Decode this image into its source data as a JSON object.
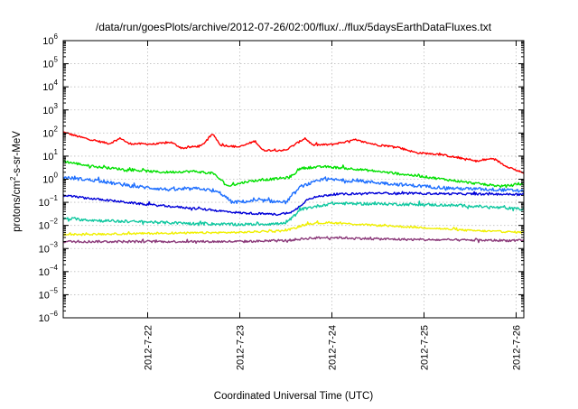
{
  "chart_data": {
    "type": "line",
    "title": "/data/run/goesPlots/archive/2012-07-26/02:00/flux/../flux/5daysEarthDataFluxes.txt",
    "xlabel": "Coordinated Universal Time (UTC)",
    "ylabel": "protons/cm²-s-sr-MeV",
    "y_scale": "log",
    "ylim": [
      1e-06,
      1000000.0
    ],
    "xlim": [
      "2012-07-21 02:00",
      "2012-07-26 02:00"
    ],
    "x_ticks": [
      "2012-7-22",
      "2012-7-23",
      "2012-7-24",
      "2012-7-25",
      "2012-7-26"
    ],
    "y_ticks": [
      "10^-6",
      "10^-5",
      "10^-4",
      "10^-3",
      "10^-2",
      "10^-1",
      "10^0",
      "10^1",
      "10^2",
      "10^3",
      "10^4",
      "10^5",
      "10^6"
    ],
    "grid": true,
    "series": [
      {
        "color": "#ff0000",
        "noise": 0.04,
        "points": [
          [
            "2012-07-21 02:00",
            110
          ],
          [
            "2012-07-21 06:00",
            70
          ],
          [
            "2012-07-21 10:00",
            48
          ],
          [
            "2012-07-21 14:00",
            35
          ],
          [
            "2012-07-21 17:00",
            60
          ],
          [
            "2012-07-21 19:00",
            35
          ],
          [
            "2012-07-22 02:00",
            33
          ],
          [
            "2012-07-22 06:00",
            40
          ],
          [
            "2012-07-22 09:00",
            22
          ],
          [
            "2012-07-22 14:00",
            28
          ],
          [
            "2012-07-22 17:00",
            90
          ],
          [
            "2012-07-22 19:00",
            30
          ],
          [
            "2012-07-23 00:00",
            25
          ],
          [
            "2012-07-23 04:00",
            45
          ],
          [
            "2012-07-23 06:00",
            18
          ],
          [
            "2012-07-23 12:00",
            18
          ],
          [
            "2012-07-23 17:00",
            60
          ],
          [
            "2012-07-23 19:00",
            30
          ],
          [
            "2012-07-24 00:00",
            32
          ],
          [
            "2012-07-24 06:00",
            50
          ],
          [
            "2012-07-24 12:00",
            30
          ],
          [
            "2012-07-24 17:00",
            25
          ],
          [
            "2012-07-24 22:00",
            14
          ],
          [
            "2012-07-25 04:00",
            12
          ],
          [
            "2012-07-25 08:00",
            9
          ],
          [
            "2012-07-25 14:00",
            6
          ],
          [
            "2012-07-25 18:00",
            8
          ],
          [
            "2012-07-25 21:00",
            4
          ],
          [
            "2012-07-26 02:00",
            1.8
          ]
        ]
      },
      {
        "color": "#00e000",
        "noise": 0.05,
        "points": [
          [
            "2012-07-21 02:00",
            6
          ],
          [
            "2012-07-21 10:00",
            3.5
          ],
          [
            "2012-07-21 20:00",
            2.5
          ],
          [
            "2012-07-22 04:00",
            2
          ],
          [
            "2012-07-22 12:00",
            2.2
          ],
          [
            "2012-07-22 17:00",
            1.8
          ],
          [
            "2012-07-22 21:00",
            0.5
          ],
          [
            "2012-07-23 02:00",
            0.8
          ],
          [
            "2012-07-23 08:00",
            1.0
          ],
          [
            "2012-07-23 13:00",
            1.2
          ],
          [
            "2012-07-23 16:00",
            3.0
          ],
          [
            "2012-07-23 22:00",
            3.5
          ],
          [
            "2012-07-24 06:00",
            2.8
          ],
          [
            "2012-07-24 14:00",
            2.0
          ],
          [
            "2012-07-25 00:00",
            1.3
          ],
          [
            "2012-07-25 12:00",
            0.7
          ],
          [
            "2012-07-25 20:00",
            0.5
          ],
          [
            "2012-07-26 02:00",
            0.6
          ]
        ]
      },
      {
        "color": "#1e6fff",
        "noise": 0.07,
        "points": [
          [
            "2012-07-21 02:00",
            1.2
          ],
          [
            "2012-07-21 10:00",
            0.9
          ],
          [
            "2012-07-21 20:00",
            0.5
          ],
          [
            "2012-07-22 06:00",
            0.35
          ],
          [
            "2012-07-22 14:00",
            0.4
          ],
          [
            "2012-07-22 19:00",
            0.25
          ],
          [
            "2012-07-22 22:00",
            0.1
          ],
          [
            "2012-07-23 06:00",
            0.12
          ],
          [
            "2012-07-23 12:00",
            0.1
          ],
          [
            "2012-07-23 16:00",
            0.5
          ],
          [
            "2012-07-23 22:00",
            1.0
          ],
          [
            "2012-07-24 08:00",
            0.8
          ],
          [
            "2012-07-24 20:00",
            0.55
          ],
          [
            "2012-07-25 08:00",
            0.4
          ],
          [
            "2012-07-25 20:00",
            0.35
          ],
          [
            "2012-07-26 02:00",
            0.3
          ]
        ]
      },
      {
        "color": "#0000d8",
        "noise": 0.045,
        "points": [
          [
            "2012-07-21 02:00",
            0.2
          ],
          [
            "2012-07-21 12:00",
            0.13
          ],
          [
            "2012-07-22 00:00",
            0.08
          ],
          [
            "2012-07-22 12:00",
            0.055
          ],
          [
            "2012-07-23 00:00",
            0.035
          ],
          [
            "2012-07-23 10:00",
            0.03
          ],
          [
            "2012-07-23 14:00",
            0.04
          ],
          [
            "2012-07-23 18:00",
            0.15
          ],
          [
            "2012-07-24 00:00",
            0.22
          ],
          [
            "2012-07-24 12:00",
            0.25
          ],
          [
            "2012-07-25 00:00",
            0.24
          ],
          [
            "2012-07-25 12:00",
            0.23
          ],
          [
            "2012-07-26 02:00",
            0.22
          ]
        ]
      },
      {
        "color": "#10c8a0",
        "noise": 0.06,
        "points": [
          [
            "2012-07-21 02:00",
            0.02
          ],
          [
            "2012-07-21 12:00",
            0.016
          ],
          [
            "2012-07-22 00:00",
            0.014
          ],
          [
            "2012-07-22 12:00",
            0.012
          ],
          [
            "2012-07-23 00:00",
            0.011
          ],
          [
            "2012-07-23 12:00",
            0.012
          ],
          [
            "2012-07-23 16:00",
            0.05
          ],
          [
            "2012-07-24 00:00",
            0.09
          ],
          [
            "2012-07-24 12:00",
            0.085
          ],
          [
            "2012-07-25 00:00",
            0.08
          ],
          [
            "2012-07-25 12:00",
            0.07
          ],
          [
            "2012-07-26 02:00",
            0.05
          ]
        ]
      },
      {
        "color": "#f0f000",
        "noise": 0.04,
        "points": [
          [
            "2012-07-21 02:00",
            0.004
          ],
          [
            "2012-07-22 00:00",
            0.0045
          ],
          [
            "2012-07-23 00:00",
            0.005
          ],
          [
            "2012-07-23 12:00",
            0.006
          ],
          [
            "2012-07-23 18:00",
            0.012
          ],
          [
            "2012-07-24 00:00",
            0.013
          ],
          [
            "2012-07-24 12:00",
            0.01
          ],
          [
            "2012-07-25 00:00",
            0.008
          ],
          [
            "2012-07-25 12:00",
            0.006
          ],
          [
            "2012-07-26 02:00",
            0.005
          ]
        ]
      },
      {
        "color": "#8b3a7a",
        "noise": 0.05,
        "points": [
          [
            "2012-07-21 02:00",
            0.002
          ],
          [
            "2012-07-22 00:00",
            0.002
          ],
          [
            "2012-07-23 00:00",
            0.002
          ],
          [
            "2012-07-23 12:00",
            0.0022
          ],
          [
            "2012-07-23 18:00",
            0.0028
          ],
          [
            "2012-07-24 00:00",
            0.003
          ],
          [
            "2012-07-24 12:00",
            0.0026
          ],
          [
            "2012-07-25 00:00",
            0.0024
          ],
          [
            "2012-07-26 02:00",
            0.0022
          ]
        ]
      }
    ]
  }
}
